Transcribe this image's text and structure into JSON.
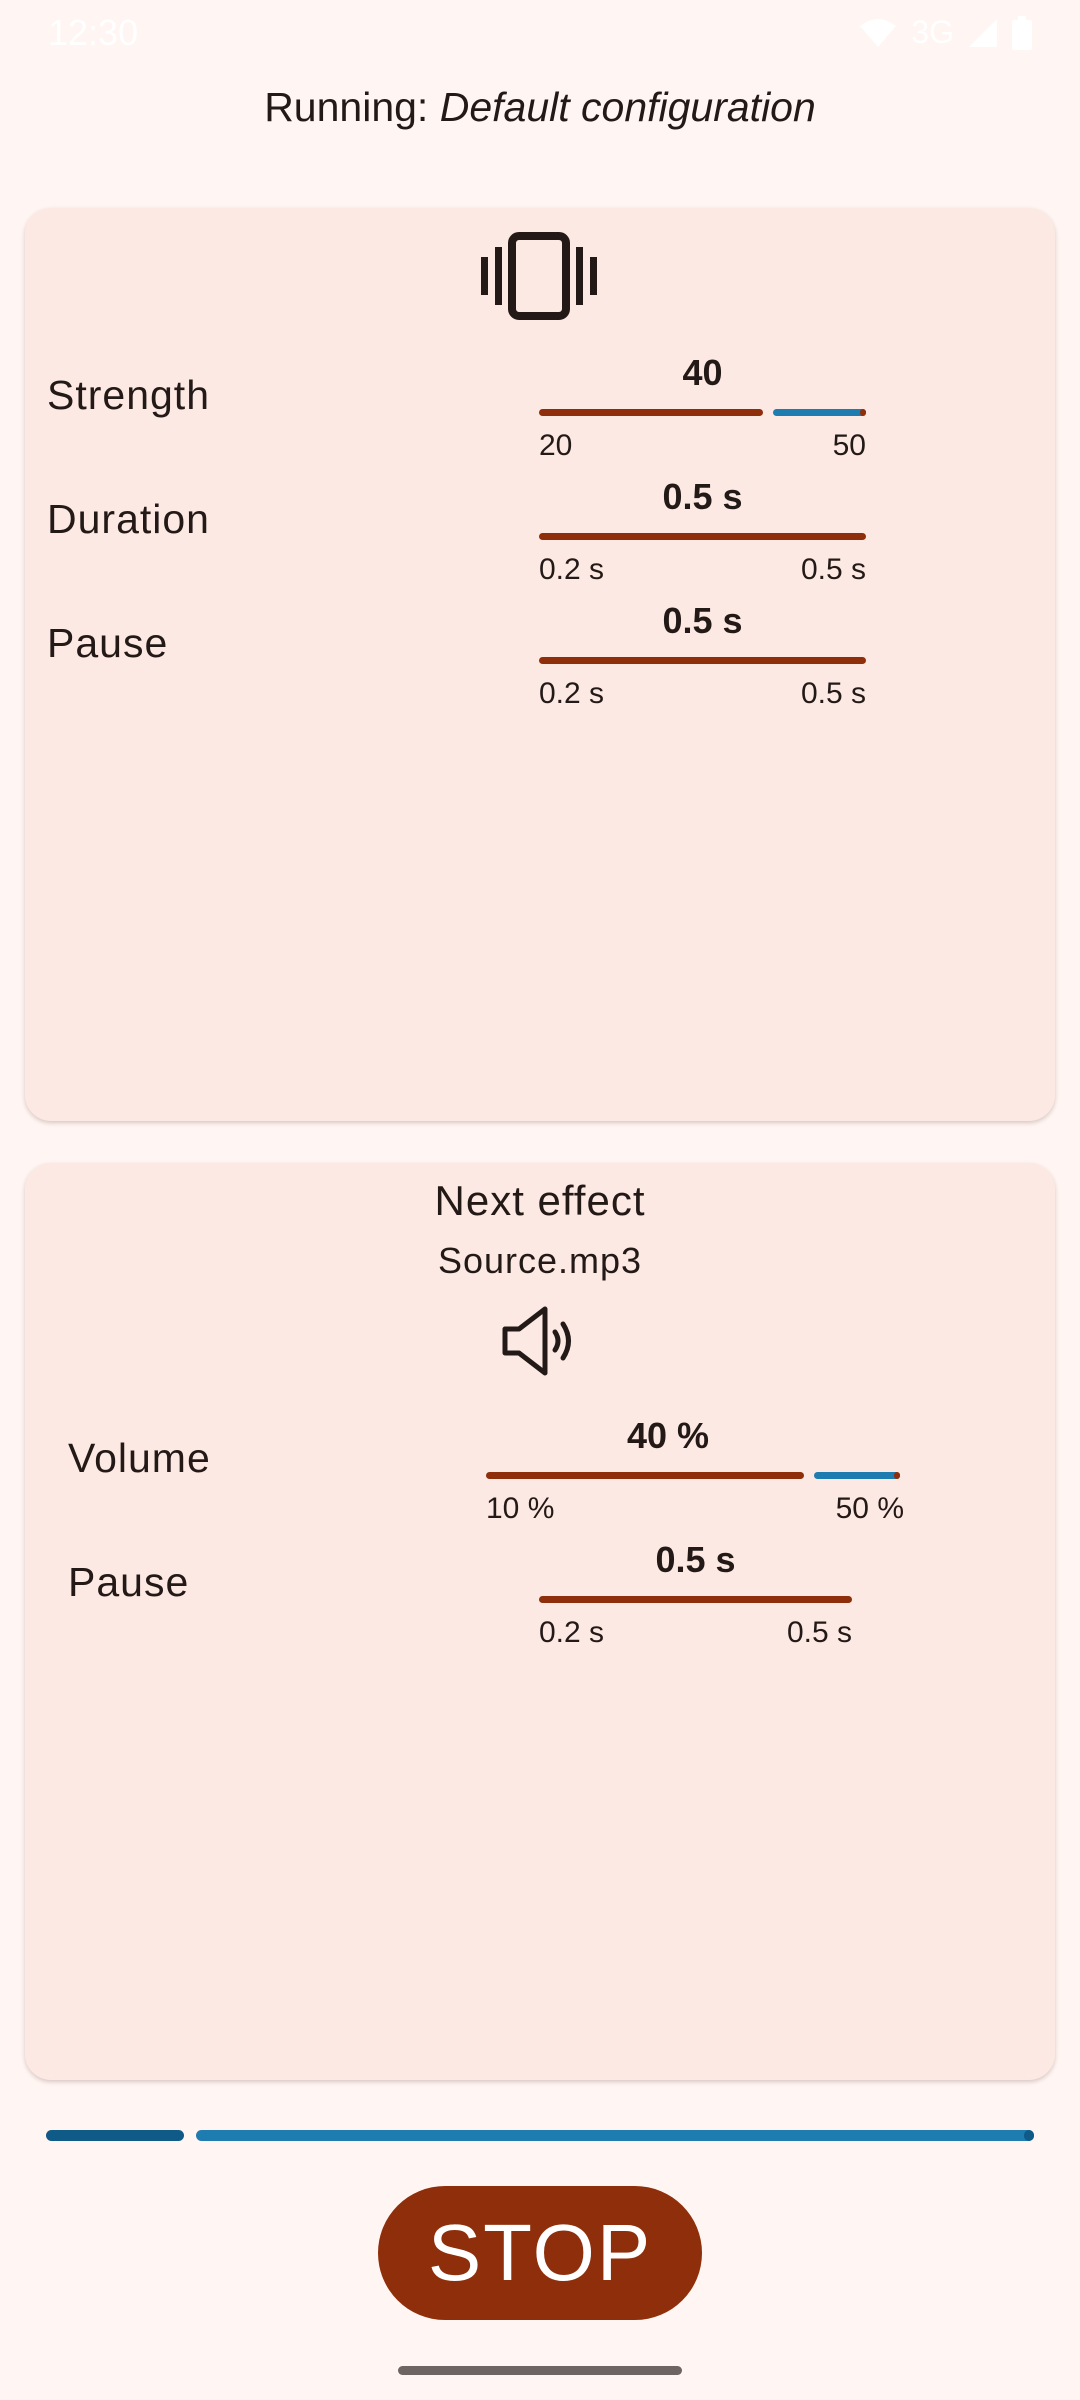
{
  "status_bar": {
    "time": "12:30",
    "network": "3G",
    "icons": [
      "wifi-icon",
      "cell-signal-icon",
      "battery-icon"
    ]
  },
  "header": {
    "prefix": "Running: ",
    "configuration": "Default configuration"
  },
  "vibration_card": {
    "icon": "vibration-icon",
    "params": [
      {
        "label": "Strength",
        "value": "40",
        "min": "20",
        "max": "50"
      },
      {
        "label": "Duration",
        "value": "0.5 s",
        "min": "0.2 s",
        "max": "0.5 s"
      },
      {
        "label": "Pause",
        "value": "0.5 s",
        "min": "0.2 s",
        "max": "0.5 s"
      }
    ]
  },
  "next_effect_card": {
    "title": "Next effect",
    "source": "Source.mp3",
    "icon": "speaker-icon",
    "params": [
      {
        "label": "Volume",
        "value": "40 %",
        "min": "10 %",
        "max": "50 %"
      },
      {
        "label": "Pause",
        "value": "0.5 s",
        "min": "0.2 s",
        "max": "0.5 s"
      }
    ]
  },
  "progress": {
    "elapsed_fraction": 0.14
  },
  "stop_button": {
    "label": "STOP"
  },
  "colors": {
    "background": "#fff5f2",
    "card": "#fde9e4",
    "accent": "#8f2e0a",
    "blue": "#1f7cb1",
    "blue_dark": "#0f5a86",
    "text": "#231a17"
  }
}
